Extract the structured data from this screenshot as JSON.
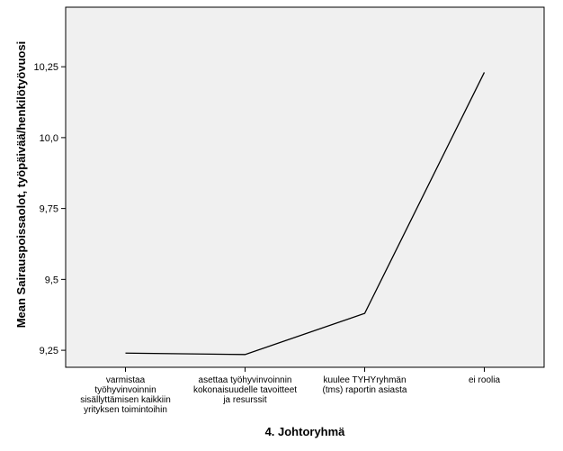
{
  "chart_data": {
    "type": "line",
    "xlabel": "4. Johtoryhmä",
    "ylabel": "Mean Sairauspoissaolot, työpäivää/henkilötyövuosi",
    "categories": [
      [
        "varmistaa",
        "työhyvinvoinnin",
        "sisällyttämisen kaikkiin",
        "yrityksen toimintoihin"
      ],
      [
        "asettaa työhyvinvoinnin",
        "kokonaisuudelle tavoitteet",
        "ja resurssit"
      ],
      [
        "kuulee TYHYryhmän",
        "(tms) raportin asiasta"
      ],
      [
        "ei roolia"
      ]
    ],
    "values": [
      9.24,
      9.235,
      9.38,
      10.23
    ],
    "yticks": [
      9.25,
      9.5,
      9.75,
      10.0,
      10.25
    ],
    "ytick_labels": [
      "9,25",
      "9,5",
      "9,75",
      "10,0",
      "10,25"
    ],
    "ylim": [
      9.19,
      10.46
    ],
    "grid": false,
    "legend": "none",
    "colors": {
      "plot_background": "#f0f0f0",
      "line": "#000000",
      "axis": "#000000"
    }
  }
}
